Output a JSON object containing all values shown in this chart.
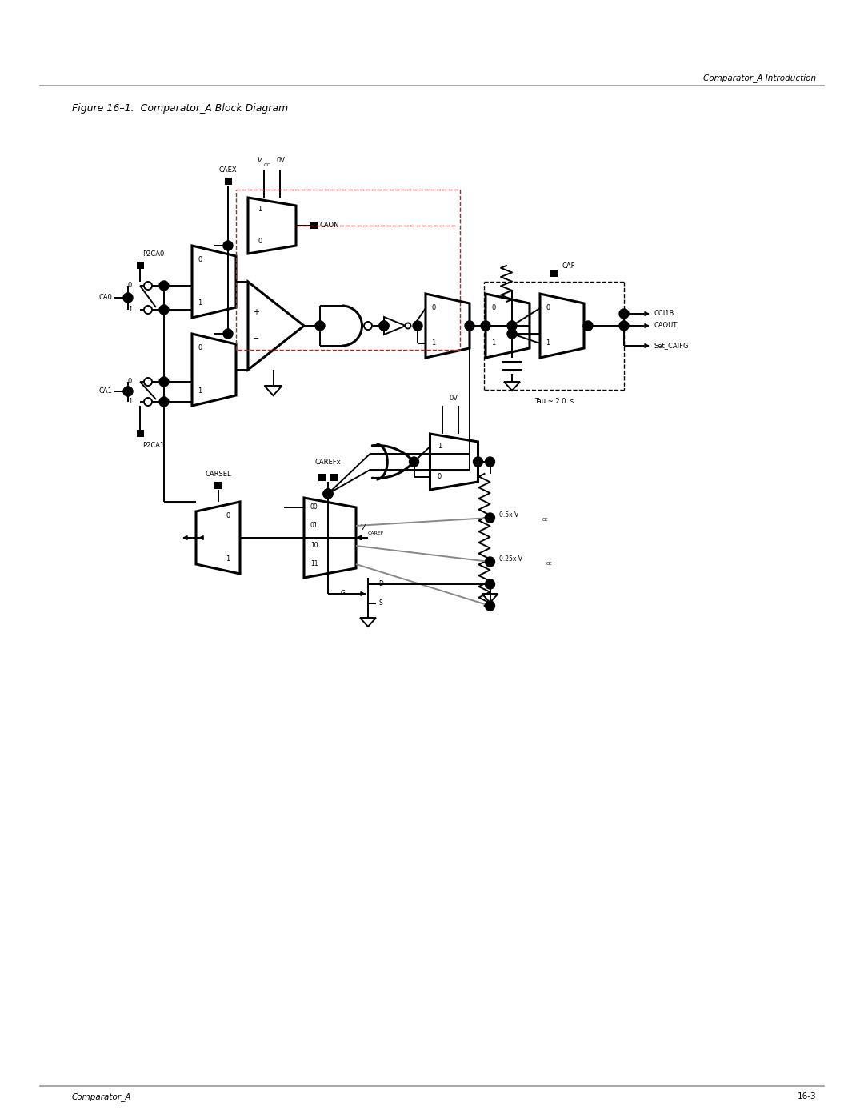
{
  "title": "Figure 16–1.  Comparator_A Block Diagram",
  "header_right": "Comparator_A Introduction",
  "footer_left": "Comparator_A",
  "footer_right": "16-3",
  "background_color": "#ffffff"
}
